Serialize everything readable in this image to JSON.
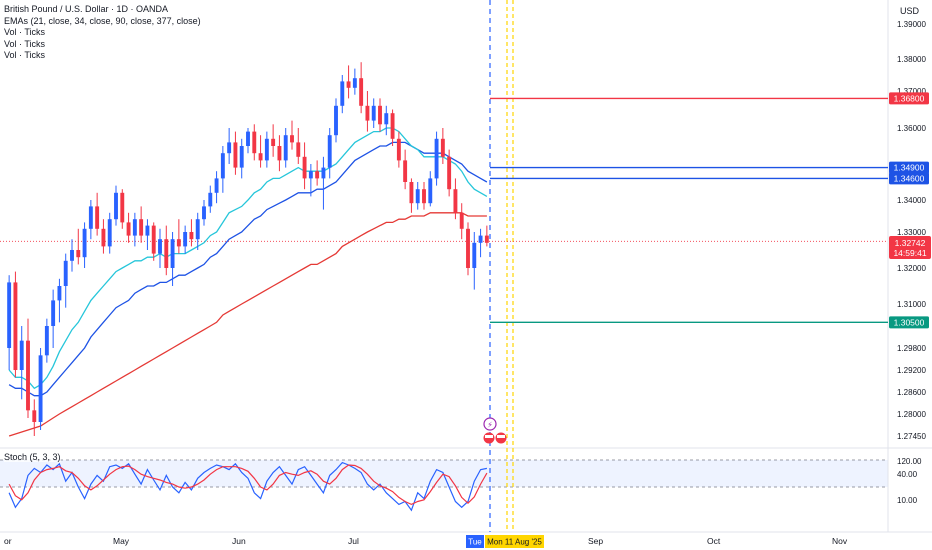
{
  "legend": {
    "title": "British Pound / U.S. Dollar · 1D · OANDA",
    "ema": "EMAs (21, close, 34, close, 90, close, 377, close)",
    "vol1": "Vol · Ticks",
    "vol2": "Vol · Ticks",
    "vol3": "Vol · Ticks"
  },
  "currency": "USD",
  "stoch_label": "Stoch (5, 3, 3)",
  "colors": {
    "up": "#2962ff",
    "down": "#f23645",
    "ema_fast": "#26c6da",
    "ema_mid": "#1e53e5",
    "ema_slow": "#e53935",
    "hline_red": "#f23645",
    "hline_blue": "#1e53e5",
    "hline_green": "#089981",
    "date_marker": "#ffd600",
    "cursor": "#2962ff",
    "stoch_k": "#2962ff",
    "stoch_d": "#f23645"
  },
  "chart_data": {
    "type": "candlestick",
    "y_axis": {
      "ticks": [
        "1.39000",
        "1.38000",
        "1.37000",
        "1.36000",
        "1.34000",
        "1.33000",
        "1.32000",
        "1.31000",
        "1.29800",
        "1.29200",
        "1.28600",
        "1.28000",
        "1.27450"
      ],
      "tick_values": [
        1.39,
        1.38,
        1.37,
        1.36,
        1.34,
        1.33,
        1.32,
        1.31,
        1.298,
        1.292,
        1.286,
        1.28,
        1.2745
      ]
    },
    "x_axis": {
      "labels": [
        "or",
        "May",
        "Jun",
        "Jul",
        "Tue",
        "Mon 11 Aug '25",
        "Sep",
        "Oct",
        "Nov"
      ]
    },
    "horizontal_lines": [
      {
        "label": "1.36800",
        "value": 1.368,
        "color": "#f23645"
      },
      {
        "label": "1.34900",
        "value": 1.349,
        "color": "#1e53e5"
      },
      {
        "label": "1.34600",
        "value": 1.346,
        "color": "#1e53e5"
      },
      {
        "label": "1.30500",
        "value": 1.305,
        "color": "#089981"
      }
    ],
    "last_price": {
      "value": "1.32742",
      "countdown": "14:59:41"
    },
    "candles": [
      [
        1.298,
        1.318,
        1.292,
        1.316
      ],
      [
        1.316,
        1.319,
        1.29,
        1.292
      ],
      [
        1.292,
        1.304,
        1.284,
        1.3
      ],
      [
        1.3,
        1.306,
        1.279,
        1.281
      ],
      [
        1.281,
        1.284,
        1.2745,
        1.278
      ],
      [
        1.278,
        1.298,
        1.276,
        1.296
      ],
      [
        1.296,
        1.306,
        1.294,
        1.304
      ],
      [
        1.304,
        1.314,
        1.298,
        1.311
      ],
      [
        1.311,
        1.317,
        1.305,
        1.315
      ],
      [
        1.315,
        1.324,
        1.309,
        1.322
      ],
      [
        1.322,
        1.328,
        1.319,
        1.325
      ],
      [
        1.325,
        1.331,
        1.321,
        1.323
      ],
      [
        1.323,
        1.333,
        1.32,
        1.331
      ],
      [
        1.331,
        1.34,
        1.328,
        1.338
      ],
      [
        1.338,
        1.342,
        1.329,
        1.331
      ],
      [
        1.331,
        1.334,
        1.324,
        1.326
      ],
      [
        1.326,
        1.336,
        1.324,
        1.334
      ],
      [
        1.334,
        1.344,
        1.332,
        1.342
      ],
      [
        1.342,
        1.343,
        1.331,
        1.333
      ],
      [
        1.333,
        1.336,
        1.327,
        1.329
      ],
      [
        1.329,
        1.336,
        1.326,
        1.334
      ],
      [
        1.334,
        1.338,
        1.327,
        1.329
      ],
      [
        1.329,
        1.334,
        1.325,
        1.332
      ],
      [
        1.332,
        1.333,
        1.322,
        1.324
      ],
      [
        1.324,
        1.331,
        1.32,
        1.328
      ],
      [
        1.328,
        1.332,
        1.318,
        1.32
      ],
      [
        1.32,
        1.33,
        1.315,
        1.328
      ],
      [
        1.328,
        1.334,
        1.324,
        1.326
      ],
      [
        1.326,
        1.332,
        1.324,
        1.33
      ],
      [
        1.33,
        1.334,
        1.326,
        1.328
      ],
      [
        1.328,
        1.336,
        1.325,
        1.334
      ],
      [
        1.334,
        1.34,
        1.332,
        1.338
      ],
      [
        1.338,
        1.344,
        1.336,
        1.342
      ],
      [
        1.342,
        1.348,
        1.339,
        1.346
      ],
      [
        1.346,
        1.355,
        1.342,
        1.353
      ],
      [
        1.353,
        1.36,
        1.35,
        1.356
      ],
      [
        1.356,
        1.359,
        1.347,
        1.349
      ],
      [
        1.349,
        1.357,
        1.346,
        1.355
      ],
      [
        1.355,
        1.36,
        1.353,
        1.359
      ],
      [
        1.359,
        1.361,
        1.351,
        1.353
      ],
      [
        1.353,
        1.358,
        1.349,
        1.351
      ],
      [
        1.351,
        1.359,
        1.349,
        1.357
      ],
      [
        1.357,
        1.361,
        1.352,
        1.355
      ],
      [
        1.355,
        1.358,
        1.348,
        1.351
      ],
      [
        1.351,
        1.36,
        1.349,
        1.358
      ],
      [
        1.358,
        1.362,
        1.354,
        1.356
      ],
      [
        1.356,
        1.36,
        1.35,
        1.352
      ],
      [
        1.352,
        1.356,
        1.343,
        1.346
      ],
      [
        1.346,
        1.35,
        1.341,
        1.348
      ],
      [
        1.348,
        1.351,
        1.344,
        1.346
      ],
      [
        1.346,
        1.352,
        1.337,
        1.349
      ],
      [
        1.349,
        1.36,
        1.346,
        1.358
      ],
      [
        1.358,
        1.368,
        1.356,
        1.366
      ],
      [
        1.366,
        1.375,
        1.364,
        1.373
      ],
      [
        1.373,
        1.378,
        1.368,
        1.371
      ],
      [
        1.371,
        1.377,
        1.369,
        1.374
      ],
      [
        1.374,
        1.379,
        1.364,
        1.366
      ],
      [
        1.366,
        1.37,
        1.359,
        1.362
      ],
      [
        1.362,
        1.368,
        1.36,
        1.366
      ],
      [
        1.366,
        1.368,
        1.359,
        1.361
      ],
      [
        1.361,
        1.366,
        1.358,
        1.364
      ],
      [
        1.364,
        1.365,
        1.355,
        1.357
      ],
      [
        1.357,
        1.359,
        1.349,
        1.351
      ],
      [
        1.351,
        1.354,
        1.343,
        1.345
      ],
      [
        1.345,
        1.346,
        1.336,
        1.339
      ],
      [
        1.339,
        1.345,
        1.337,
        1.343
      ],
      [
        1.343,
        1.345,
        1.337,
        1.339
      ],
      [
        1.339,
        1.348,
        1.338,
        1.346
      ],
      [
        1.346,
        1.359,
        1.344,
        1.357
      ],
      [
        1.357,
        1.36,
        1.35,
        1.352
      ],
      [
        1.352,
        1.354,
        1.341,
        1.343
      ],
      [
        1.343,
        1.346,
        1.334,
        1.336
      ],
      [
        1.336,
        1.339,
        1.328,
        1.331
      ],
      [
        1.331,
        1.333,
        1.318,
        1.32
      ],
      [
        1.32,
        1.33,
        1.314,
        1.327
      ],
      [
        1.327,
        1.331,
        1.323,
        1.329
      ],
      [
        1.329,
        1.332,
        1.326,
        1.327
      ]
    ],
    "ema_fast": [
      1.292,
      1.29,
      1.29,
      1.289,
      1.287,
      1.288,
      1.29,
      1.293,
      1.297,
      1.3,
      1.303,
      1.305,
      1.308,
      1.311,
      1.313,
      1.315,
      1.317,
      1.319,
      1.32,
      1.321,
      1.322,
      1.322,
      1.323,
      1.323,
      1.324,
      1.323,
      1.324,
      1.324,
      1.324,
      1.325,
      1.326,
      1.327,
      1.329,
      1.33,
      1.333,
      1.336,
      1.337,
      1.338,
      1.34,
      1.342,
      1.343,
      1.345,
      1.346,
      1.346,
      1.347,
      1.348,
      1.349,
      1.348,
      1.348,
      1.348,
      1.348,
      1.349,
      1.35,
      1.352,
      1.354,
      1.356,
      1.357,
      1.358,
      1.359,
      1.359,
      1.36,
      1.36,
      1.359,
      1.357,
      1.355,
      1.354,
      1.352,
      1.352,
      1.352,
      1.352,
      1.351,
      1.35,
      1.348,
      1.345,
      1.343,
      1.342,
      1.341
    ],
    "ema_mid": [
      1.288,
      1.287,
      1.287,
      1.286,
      1.285,
      1.285,
      1.286,
      1.288,
      1.29,
      1.292,
      1.294,
      1.296,
      1.298,
      1.301,
      1.303,
      1.305,
      1.307,
      1.309,
      1.31,
      1.311,
      1.313,
      1.314,
      1.315,
      1.315,
      1.316,
      1.316,
      1.317,
      1.318,
      1.318,
      1.319,
      1.32,
      1.321,
      1.323,
      1.324,
      1.326,
      1.328,
      1.329,
      1.33,
      1.332,
      1.334,
      1.335,
      1.337,
      1.338,
      1.339,
      1.34,
      1.341,
      1.342,
      1.342,
      1.342,
      1.343,
      1.343,
      1.344,
      1.345,
      1.347,
      1.349,
      1.351,
      1.352,
      1.353,
      1.354,
      1.355,
      1.355,
      1.356,
      1.356,
      1.356,
      1.355,
      1.354,
      1.353,
      1.353,
      1.353,
      1.353,
      1.352,
      1.351,
      1.35,
      1.348,
      1.347,
      1.346,
      1.345
    ],
    "ema_slow": [
      1.2745,
      1.275,
      1.2755,
      1.276,
      1.2765,
      1.277,
      1.278,
      1.279,
      1.28,
      1.281,
      1.282,
      1.283,
      1.284,
      1.285,
      1.286,
      1.287,
      1.288,
      1.289,
      1.29,
      1.291,
      1.292,
      1.293,
      1.294,
      1.295,
      1.296,
      1.297,
      1.298,
      1.299,
      1.3,
      1.301,
      1.302,
      1.303,
      1.304,
      1.305,
      1.307,
      1.308,
      1.309,
      1.31,
      1.311,
      1.312,
      1.313,
      1.314,
      1.315,
      1.316,
      1.317,
      1.318,
      1.319,
      1.32,
      1.321,
      1.321,
      1.322,
      1.323,
      1.324,
      1.326,
      1.327,
      1.328,
      1.329,
      1.33,
      1.331,
      1.332,
      1.333,
      1.333,
      1.334,
      1.334,
      1.335,
      1.335,
      1.335,
      1.336,
      1.336,
      1.336,
      1.336,
      1.336,
      1.336,
      1.335,
      1.335,
      1.335,
      1.335
    ],
    "stoch": {
      "ticks": [
        "120.00",
        "40.00",
        "10.00"
      ],
      "tick_values": [
        120,
        40,
        10
      ],
      "k": [
        40,
        15,
        30,
        70,
        82,
        75,
        88,
        80,
        90,
        60,
        75,
        50,
        30,
        55,
        70,
        60,
        85,
        88,
        82,
        90,
        72,
        55,
        80,
        62,
        45,
        70,
        50,
        40,
        58,
        45,
        65,
        75,
        82,
        88,
        85,
        80,
        90,
        75,
        65,
        40,
        30,
        60,
        75,
        85,
        70,
        55,
        80,
        85,
        70,
        55,
        40,
        70,
        80,
        92,
        88,
        82,
        75,
        55,
        45,
        55,
        40,
        30,
        20,
        25,
        10,
        40,
        30,
        60,
        80,
        75,
        50,
        25,
        15,
        25,
        60,
        80,
        82
      ],
      "d": [
        55,
        35,
        28,
        40,
        62,
        75,
        80,
        82,
        85,
        78,
        75,
        65,
        52,
        45,
        52,
        62,
        72,
        80,
        85,
        86,
        80,
        72,
        68,
        65,
        62,
        58,
        55,
        50,
        48,
        50,
        55,
        62,
        72,
        80,
        85,
        85,
        85,
        82,
        77,
        65,
        50,
        45,
        55,
        70,
        75,
        72,
        70,
        75,
        78,
        72,
        60,
        55,
        65,
        80,
        88,
        87,
        82,
        72,
        60,
        52,
        48,
        42,
        32,
        25,
        20,
        25,
        28,
        42,
        58,
        72,
        68,
        52,
        32,
        22,
        33,
        55,
        74
      ]
    }
  }
}
